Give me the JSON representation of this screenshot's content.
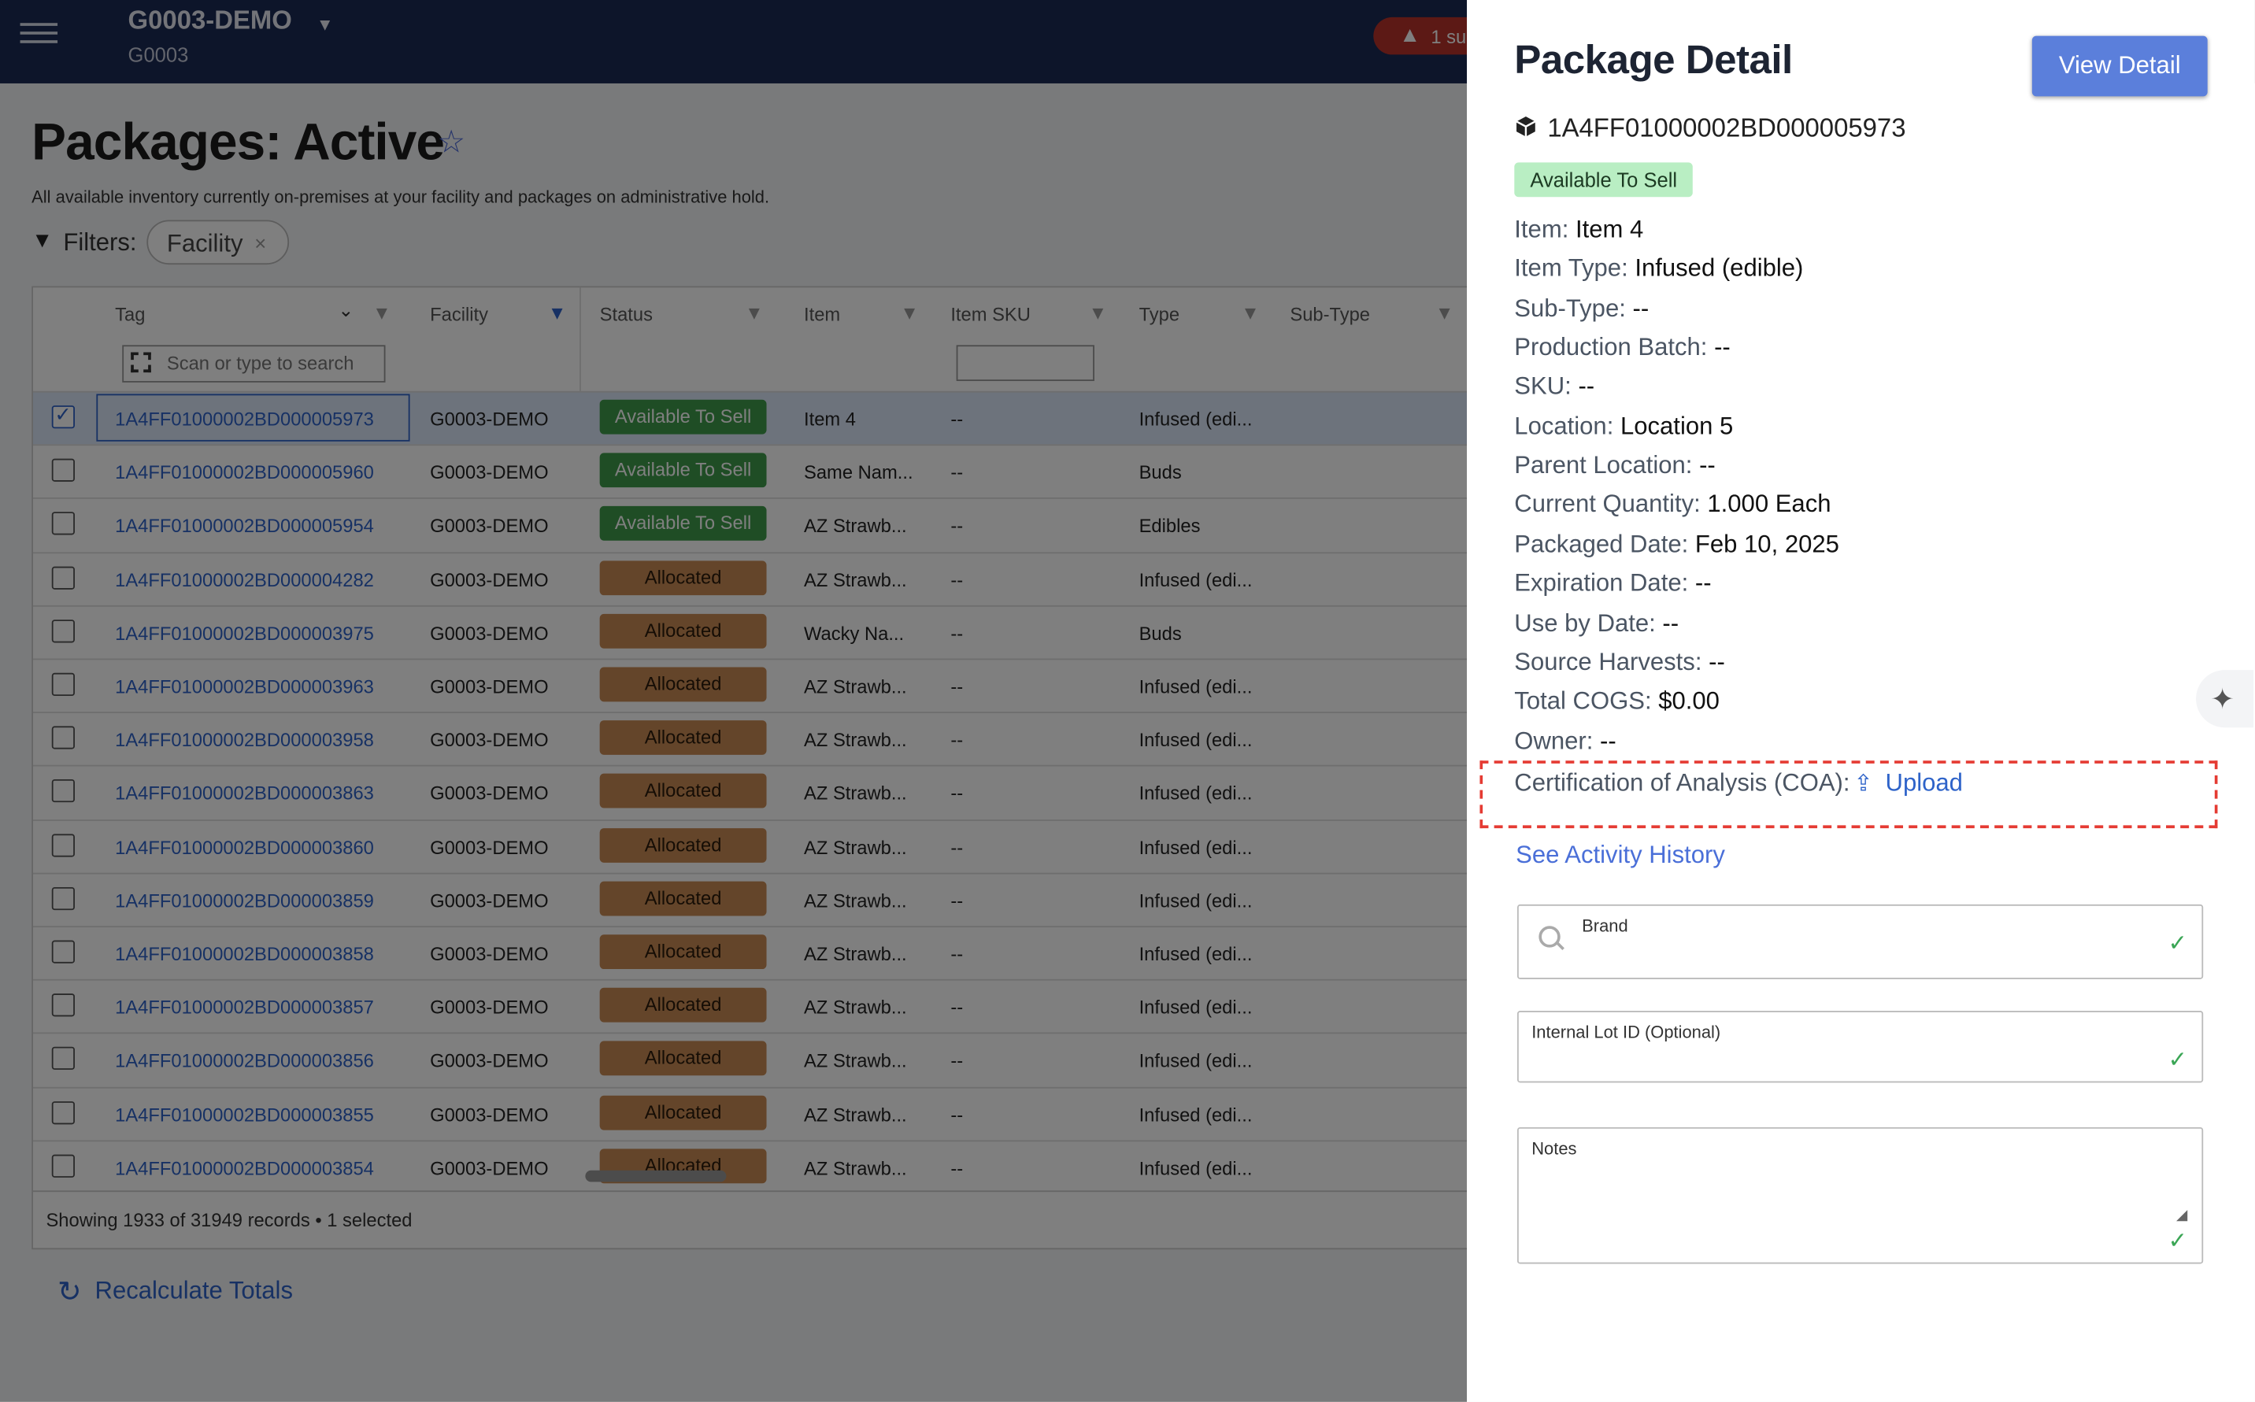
{
  "topbar": {
    "org_name": "G0003-DEMO",
    "org_code": "G0003",
    "alert_text": "1 su"
  },
  "page": {
    "title": "Packages: Active",
    "subtitle": "All available inventory currently on-premises at your facility and packages on administrative hold.",
    "filters_label": "Filters:",
    "filter_chip": "Facility"
  },
  "grid": {
    "columns": [
      "Tag",
      "Facility",
      "Status",
      "Item",
      "Item SKU",
      "Type",
      "Sub-Type"
    ],
    "search_placeholder": "Scan or type to search",
    "rows": [
      {
        "tag": "1A4FF01000002BD000005973",
        "facility": "G0003-DEMO",
        "status": "Available To Sell",
        "item": "Item 4",
        "sku": "--",
        "type": "Infused (edi..."
      },
      {
        "tag": "1A4FF01000002BD000005960",
        "facility": "G0003-DEMO",
        "status": "Available To Sell",
        "item": "Same Nam...",
        "sku": "--",
        "type": "Buds"
      },
      {
        "tag": "1A4FF01000002BD000005954",
        "facility": "G0003-DEMO",
        "status": "Available To Sell",
        "item": "AZ Strawb...",
        "sku": "--",
        "type": "Edibles"
      },
      {
        "tag": "1A4FF01000002BD000004282",
        "facility": "G0003-DEMO",
        "status": "Allocated",
        "item": "AZ Strawb...",
        "sku": "--",
        "type": "Infused (edi..."
      },
      {
        "tag": "1A4FF01000002BD000003975",
        "facility": "G0003-DEMO",
        "status": "Allocated",
        "item": "Wacky Na...",
        "sku": "--",
        "type": "Buds"
      },
      {
        "tag": "1A4FF01000002BD000003963",
        "facility": "G0003-DEMO",
        "status": "Allocated",
        "item": "AZ Strawb...",
        "sku": "--",
        "type": "Infused (edi..."
      },
      {
        "tag": "1A4FF01000002BD000003958",
        "facility": "G0003-DEMO",
        "status": "Allocated",
        "item": "AZ Strawb...",
        "sku": "--",
        "type": "Infused (edi..."
      },
      {
        "tag": "1A4FF01000002BD000003863",
        "facility": "G0003-DEMO",
        "status": "Allocated",
        "item": "AZ Strawb...",
        "sku": "--",
        "type": "Infused (edi..."
      },
      {
        "tag": "1A4FF01000002BD000003860",
        "facility": "G0003-DEMO",
        "status": "Allocated",
        "item": "AZ Strawb...",
        "sku": "--",
        "type": "Infused (edi..."
      },
      {
        "tag": "1A4FF01000002BD000003859",
        "facility": "G0003-DEMO",
        "status": "Allocated",
        "item": "AZ Strawb...",
        "sku": "--",
        "type": "Infused (edi..."
      },
      {
        "tag": "1A4FF01000002BD000003858",
        "facility": "G0003-DEMO",
        "status": "Allocated",
        "item": "AZ Strawb...",
        "sku": "--",
        "type": "Infused (edi..."
      },
      {
        "tag": "1A4FF01000002BD000003857",
        "facility": "G0003-DEMO",
        "status": "Allocated",
        "item": "AZ Strawb...",
        "sku": "--",
        "type": "Infused (edi..."
      },
      {
        "tag": "1A4FF01000002BD000003856",
        "facility": "G0003-DEMO",
        "status": "Allocated",
        "item": "AZ Strawb...",
        "sku": "--",
        "type": "Infused (edi..."
      },
      {
        "tag": "1A4FF01000002BD000003855",
        "facility": "G0003-DEMO",
        "status": "Allocated",
        "item": "AZ Strawb...",
        "sku": "--",
        "type": "Infused (edi..."
      },
      {
        "tag": "1A4FF01000002BD000003854",
        "facility": "G0003-DEMO",
        "status": "Allocated",
        "item": "AZ Strawb...",
        "sku": "--",
        "type": "Infused (edi..."
      }
    ],
    "footer": "Showing 1933 of 31949 records • 1 selected"
  },
  "recalculate_label": "Recalculate Totals",
  "detail": {
    "title": "Package Detail",
    "view_button": "View Detail",
    "tag": "1A4FF01000002BD000005973",
    "status_badge": "Available To Sell",
    "fields": [
      {
        "key": "Item:",
        "value": "Item 4"
      },
      {
        "key": "Item Type:",
        "value": "Infused (edible)"
      },
      {
        "key": "Sub-Type:",
        "value": "--"
      },
      {
        "key": "Production Batch:",
        "value": "--"
      },
      {
        "key": "SKU:",
        "value": "--"
      },
      {
        "key": "Location:",
        "value": "Location 5"
      },
      {
        "key": "Parent Location:",
        "value": "--"
      },
      {
        "key": "Current Quantity:",
        "value": "1.000 Each"
      },
      {
        "key": "Packaged Date:",
        "value": "Feb 10, 2025"
      },
      {
        "key": "Expiration Date:",
        "value": "--"
      },
      {
        "key": "Use by Date:",
        "value": "--"
      },
      {
        "key": "Source Harvests:",
        "value": "--"
      },
      {
        "key": "Total COGS:",
        "value": "$0.00"
      },
      {
        "key": "Owner:",
        "value": "--"
      }
    ],
    "coa_label": "Certification of Analysis (COA):",
    "upload_label": "Upload",
    "activity_link": "See Activity History",
    "brand_label": "Brand",
    "lot_label": "Internal Lot ID (Optional)",
    "notes_label": "Notes"
  },
  "colors": {
    "topbar": "#1b2a55",
    "accent": "#5b7fdb",
    "link": "#2e63c9",
    "available": "#3e9a4a",
    "allocated": "#c98a55",
    "coa_highlight": "#e53b33"
  }
}
